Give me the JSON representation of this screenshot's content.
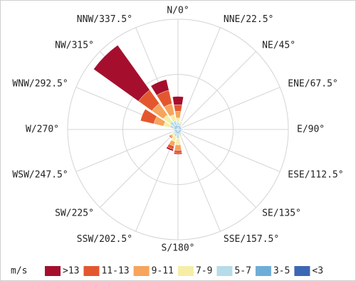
{
  "chart_data": {
    "type": "windrose",
    "categories": [
      "N/0°",
      "NNE/22.5°",
      "NE/45°",
      "ENE/67.5°",
      "E/90°",
      "ESE/112.5°",
      "SE/135°",
      "SSE/157.5°",
      "S/180°",
      "SSW/202.5°",
      "SW/225°",
      "WSW/247.5°",
      "W/270°",
      "WNW/292.5°",
      "NW/315°",
      "NNW/337.5°"
    ],
    "legend_title": "m/s",
    "series": [
      {
        "name": ">13",
        "color": "#a50f2d",
        "values": [
          1.5,
          0,
          0,
          0,
          0,
          0,
          0,
          0,
          0.2,
          0.3,
          0,
          0,
          0,
          0,
          10,
          2
        ]
      },
      {
        "name": "11-13",
        "color": "#e4572e",
        "values": [
          1.2,
          0,
          0,
          0,
          0,
          0,
          0,
          0,
          0.5,
          0.6,
          0.2,
          0,
          0,
          2.5,
          3,
          2.5
        ]
      },
      {
        "name": "9-11",
        "color": "#f7a45c",
        "values": [
          1.2,
          0,
          0,
          0,
          0,
          0,
          0,
          0,
          1,
          0.8,
          0.3,
          0,
          0,
          1.8,
          2.5,
          2
        ]
      },
      {
        "name": "7-9",
        "color": "#f6eea6",
        "values": [
          0.8,
          0.4,
          0.2,
          0,
          0.1,
          0,
          0,
          0.4,
          1.2,
          1,
          0.5,
          0.2,
          0.3,
          1.2,
          1.5,
          1.2
        ]
      },
      {
        "name": "5-7",
        "color": "#b6dbe9",
        "values": [
          0.6,
          0.4,
          0.2,
          0.2,
          0.3,
          0.2,
          0.2,
          0.4,
          0.8,
          0.6,
          0.4,
          0.2,
          0.3,
          0.8,
          1,
          0.8
        ]
      },
      {
        "name": "3-5",
        "color": "#6daed8",
        "values": [
          0.4,
          0.4,
          0.3,
          0.3,
          0.3,
          0.3,
          0.3,
          0.4,
          0.5,
          0.4,
          0.3,
          0.3,
          0.3,
          0.4,
          0.5,
          0.5
        ]
      },
      {
        "name": "<3",
        "color": "#3d67b3",
        "values": [
          0.3,
          0.3,
          0.3,
          0.3,
          0.3,
          0.3,
          0.3,
          0.3,
          0.3,
          0.3,
          0.3,
          0.3,
          0.3,
          0.3,
          0.3,
          0.3
        ]
      }
    ],
    "rlim": [
      0,
      20
    ],
    "rticks": [
      10,
      20
    ]
  }
}
